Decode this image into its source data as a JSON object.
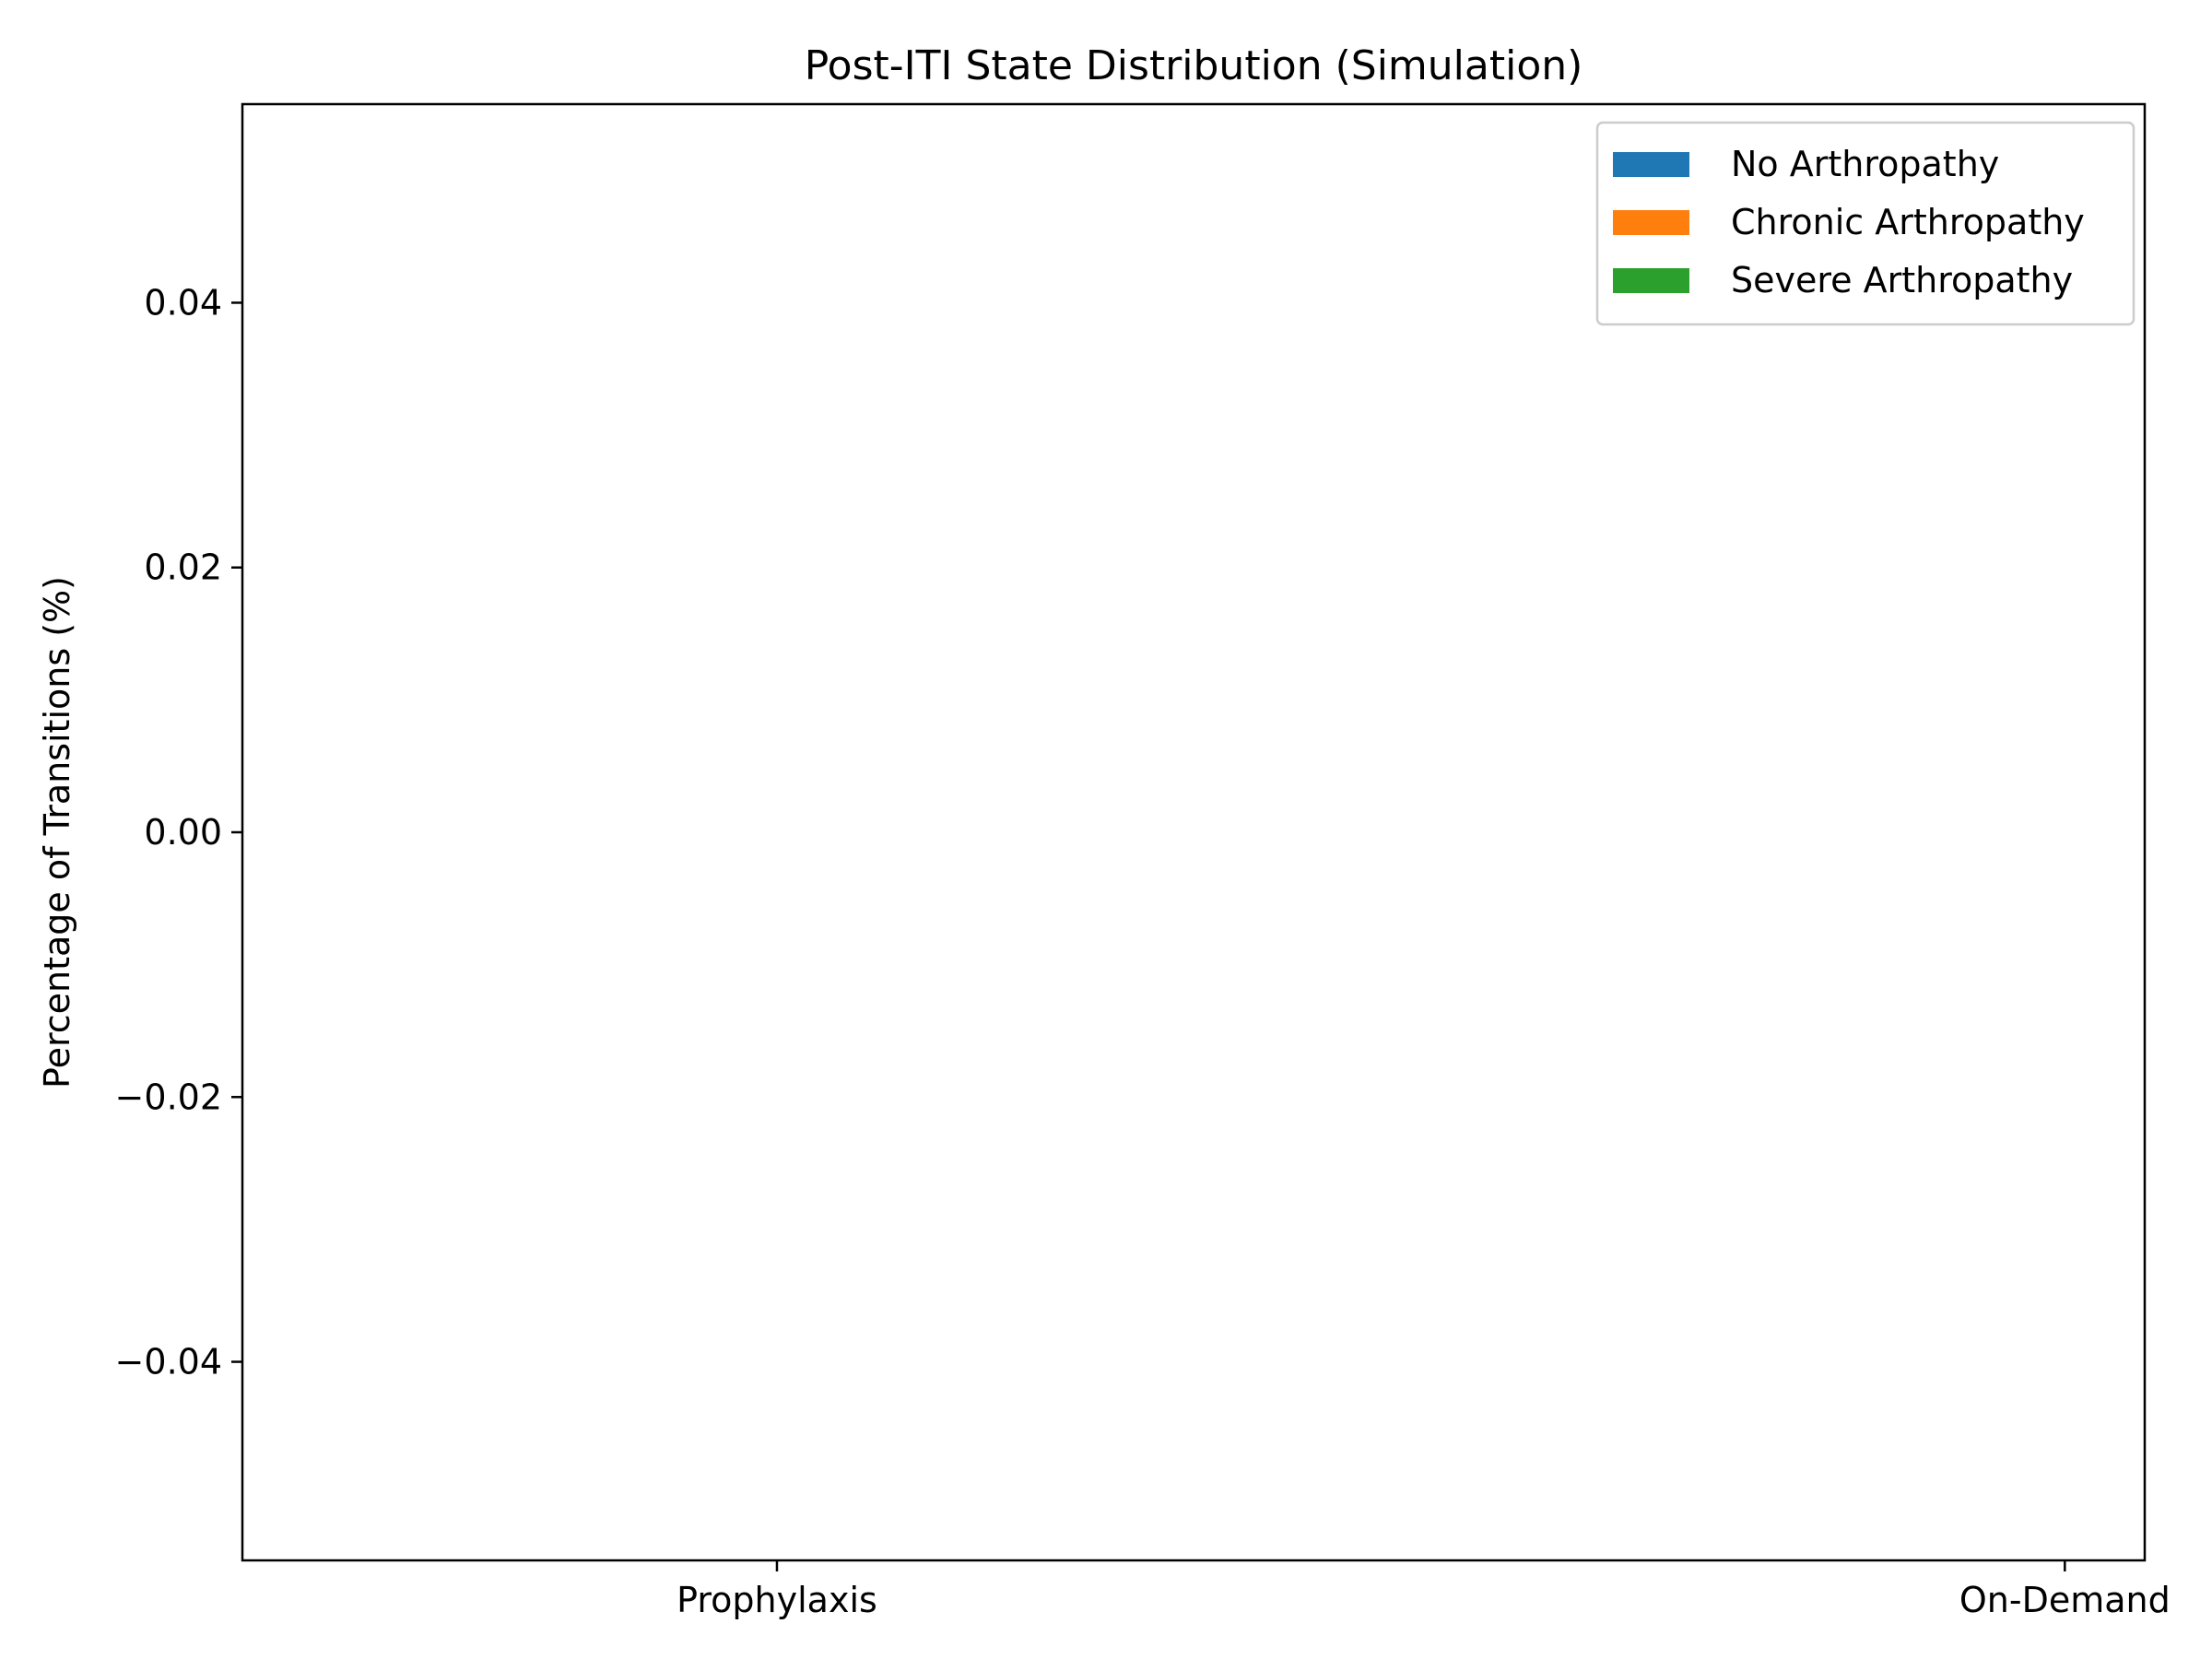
{
  "chart_data": {
    "type": "bar",
    "title": "Post-ITI State Distribution (Simulation)",
    "xlabel": "",
    "ylabel": "Percentage of Transitions (%)",
    "categories": [
      "Prophylaxis",
      "On-Demand"
    ],
    "series": [
      {
        "name": "No Arthropathy",
        "color": "#1f77b4",
        "values": [
          0,
          0
        ]
      },
      {
        "name": "Chronic Arthropathy",
        "color": "#ff7f0e",
        "values": [
          0,
          0
        ]
      },
      {
        "name": "Severe Arthropathy",
        "color": "#2ca02c",
        "values": [
          0,
          0
        ]
      }
    ],
    "stacked": true,
    "ylim": [
      -0.055,
      0.055
    ],
    "yticks": [
      -0.04,
      -0.02,
      0.0,
      0.02,
      0.04
    ],
    "ytick_labels": [
      "−0.04",
      "−0.02",
      "0.00",
      "0.02",
      "0.04"
    ],
    "grid": false,
    "legend_position": "top-right"
  }
}
